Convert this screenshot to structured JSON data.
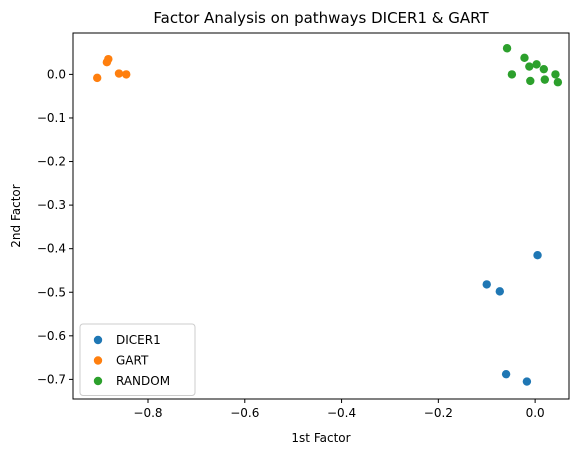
{
  "chart_data": {
    "type": "scatter",
    "title": "Factor Analysis on pathways DICER1 & GART",
    "xlabel": "1st Factor",
    "ylabel": "2nd Factor",
    "xlim": [
      -0.955,
      0.07
    ],
    "ylim": [
      -0.745,
      0.095
    ],
    "x_ticks": [
      -0.8,
      -0.6,
      -0.4,
      -0.2,
      0.0
    ],
    "x_tick_labels": [
      "−0.8",
      "−0.6",
      "−0.4",
      "−0.2",
      "0.0"
    ],
    "y_ticks": [
      0.0,
      -0.1,
      -0.2,
      -0.3,
      -0.4,
      -0.5,
      -0.6,
      -0.7
    ],
    "y_tick_labels": [
      "0.0",
      "−0.1",
      "−0.2",
      "−0.3",
      "−0.4",
      "−0.5",
      "−0.6",
      "−0.7"
    ],
    "grid": false,
    "legend_position": "lower-left",
    "series": [
      {
        "name": "DICER1",
        "color": "#1f77b4",
        "points": [
          [
            0.005,
            -0.415
          ],
          [
            -0.1,
            -0.482
          ],
          [
            -0.073,
            -0.498
          ],
          [
            -0.06,
            -0.688
          ],
          [
            -0.017,
            -0.705
          ]
        ]
      },
      {
        "name": "GART",
        "color": "#ff7f0e",
        "points": [
          [
            -0.882,
            0.035
          ],
          [
            -0.885,
            0.028
          ],
          [
            -0.86,
            0.002
          ],
          [
            -0.845,
            0.0
          ],
          [
            -0.905,
            -0.008
          ]
        ]
      },
      {
        "name": "RANDOM",
        "color": "#2ca02c",
        "points": [
          [
            -0.058,
            0.06
          ],
          [
            -0.022,
            0.038
          ],
          [
            -0.012,
            0.018
          ],
          [
            0.003,
            0.023
          ],
          [
            0.018,
            0.012
          ],
          [
            -0.048,
            0.0
          ],
          [
            0.042,
            0.0
          ],
          [
            -0.01,
            -0.015
          ],
          [
            0.02,
            -0.012
          ],
          [
            0.047,
            -0.018
          ]
        ]
      }
    ]
  }
}
